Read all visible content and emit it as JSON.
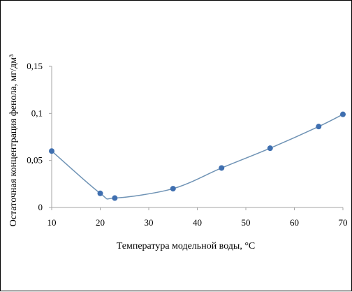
{
  "chart_data": {
    "type": "line",
    "title": "",
    "xlabel": "Температура модельной воды, °С",
    "ylabel": "Остаточная концентрация фенола, мг/дм³",
    "xlim": [
      10,
      70
    ],
    "ylim": [
      0,
      0.15
    ],
    "x_ticks": [
      10,
      20,
      30,
      40,
      50,
      60,
      70
    ],
    "x_tick_labels": [
      "10",
      "20",
      "30",
      "40",
      "50",
      "60",
      "70"
    ],
    "y_ticks": [
      0,
      0.05,
      0.1,
      0.15
    ],
    "y_tick_labels": [
      "0",
      "0,05",
      "0,1",
      "0,15"
    ],
    "grid": false,
    "smooth": true,
    "series": [
      {
        "x": [
          10,
          20,
          23,
          35,
          45,
          55,
          65,
          70
        ],
        "y": [
          0.06,
          0.015,
          0.01,
          0.02,
          0.042,
          0.063,
          0.086,
          0.099
        ]
      }
    ],
    "colors": {
      "line": "#6f93b5",
      "marker": "#3f6fb0",
      "axis": "#a6a6a6"
    }
  }
}
